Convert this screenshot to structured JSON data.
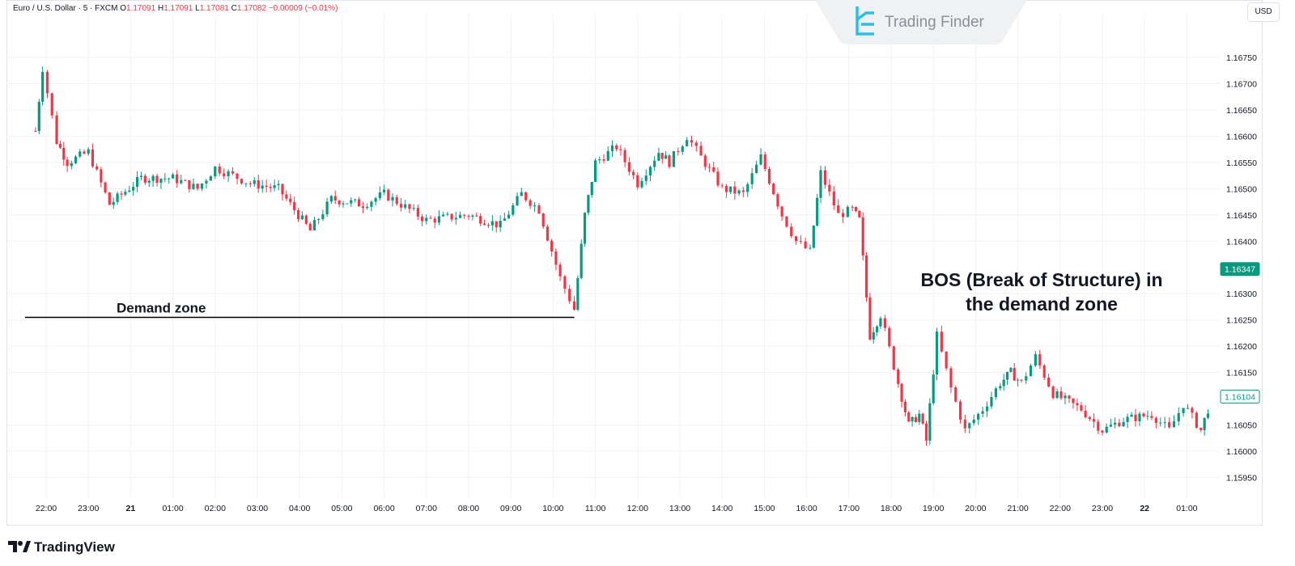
{
  "header": {
    "symbol": "Euro / U.S. Dollar · 5 · FXCM",
    "ohlc": [
      {
        "label": "O",
        "value": "1.17091"
      },
      {
        "label": "H",
        "value": "1.17091"
      },
      {
        "label": "L",
        "value": "1.17081"
      },
      {
        "label": "C",
        "value": "1.17082"
      }
    ],
    "change": "−0.00009 (−0.01%)"
  },
  "watermark": "Trading Finder",
  "currency": "USD",
  "footer_brand": "TradingView",
  "colors": {
    "up": "#089981",
    "down": "#f23645",
    "zone": "#d6efea",
    "grid": "#f0f3fa",
    "axis_text": "#131722",
    "price_tag": "#089981"
  },
  "chart_data": {
    "type": "candlestick",
    "ylim": [
      1.1592,
      1.1679
    ],
    "y_ticks": [
      "1.16750",
      "1.16700",
      "1.16650",
      "1.16600",
      "1.16550",
      "1.16500",
      "1.16450",
      "1.16400",
      "1.16300",
      "1.16250",
      "1.16200",
      "1.16150",
      "1.16050",
      "1.16000",
      "1.15950"
    ],
    "x_ticks": [
      "22:00",
      "23:00",
      "21",
      "01:00",
      "02:00",
      "03:00",
      "04:00",
      "05:00",
      "06:00",
      "07:00",
      "08:00",
      "09:00",
      "10:00",
      "11:00",
      "12:00",
      "13:00",
      "14:00",
      "15:00",
      "16:00",
      "17:00",
      "18:00",
      "19:00",
      "20:00",
      "21:00",
      "22:00",
      "23:00",
      "22",
      "01:00"
    ],
    "price_labels": [
      {
        "value": 1.16347,
        "text": "1.16347",
        "style": "filled"
      },
      {
        "value": 1.16104,
        "text": "1.16104",
        "style": "outlined"
      }
    ],
    "path": [
      {
        "x": "21:45",
        "y": 1.1661
      },
      {
        "x": "21:55",
        "y": 1.1673
      },
      {
        "x": "22:15",
        "y": 1.1659
      },
      {
        "x": "22:30",
        "y": 1.1655
      },
      {
        "x": "23:00",
        "y": 1.1657
      },
      {
        "x": "23:30",
        "y": 1.1647
      },
      {
        "x": "00:15",
        "y": 1.1652
      },
      {
        "x": "01:00",
        "y": 1.1652
      },
      {
        "x": "01:35",
        "y": 1.165
      },
      {
        "x": "02:00",
        "y": 1.1654
      },
      {
        "x": "02:50",
        "y": 1.1651
      },
      {
        "x": "03:30",
        "y": 1.165
      },
      {
        "x": "04:15",
        "y": 1.1642
      },
      {
        "x": "04:45",
        "y": 1.1648
      },
      {
        "x": "05:30",
        "y": 1.1647
      },
      {
        "x": "06:00",
        "y": 1.1649
      },
      {
        "x": "07:00",
        "y": 1.1644
      },
      {
        "x": "08:00",
        "y": 1.1645
      },
      {
        "x": "08:45",
        "y": 1.1643
      },
      {
        "x": "09:15",
        "y": 1.1649
      },
      {
        "x": "09:40",
        "y": 1.1646
      },
      {
        "x": "10:10",
        "y": 1.1633
      },
      {
        "x": "10:30",
        "y": 1.1627
      },
      {
        "x": "10:45",
        "y": 1.1645
      },
      {
        "x": "11:00",
        "y": 1.1655
      },
      {
        "x": "11:30",
        "y": 1.1658
      },
      {
        "x": "12:00",
        "y": 1.1651
      },
      {
        "x": "12:30",
        "y": 1.1657
      },
      {
        "x": "12:45",
        "y": 1.1655
      },
      {
        "x": "13:10",
        "y": 1.166
      },
      {
        "x": "13:30",
        "y": 1.1656
      },
      {
        "x": "14:00",
        "y": 1.165
      },
      {
        "x": "14:30",
        "y": 1.1649
      },
      {
        "x": "14:55",
        "y": 1.1656
      },
      {
        "x": "15:25",
        "y": 1.1645
      },
      {
        "x": "15:45",
        "y": 1.164
      },
      {
        "x": "16:05",
        "y": 1.1638
      },
      {
        "x": "16:20",
        "y": 1.1653
      },
      {
        "x": "16:45",
        "y": 1.1645
      },
      {
        "x": "17:05",
        "y": 1.1646
      },
      {
        "x": "17:15",
        "y": 1.1644
      },
      {
        "x": "17:30",
        "y": 1.1622
      },
      {
        "x": "17:45",
        "y": 1.1626
      },
      {
        "x": "18:10",
        "y": 1.1613
      },
      {
        "x": "18:25",
        "y": 1.1605
      },
      {
        "x": "18:40",
        "y": 1.1607
      },
      {
        "x": "18:50",
        "y": 1.1602
      },
      {
        "x": "19:05",
        "y": 1.1622
      },
      {
        "x": "19:25",
        "y": 1.1612
      },
      {
        "x": "19:45",
        "y": 1.1604
      },
      {
        "x": "20:10",
        "y": 1.1608
      },
      {
        "x": "20:35",
        "y": 1.1613
      },
      {
        "x": "20:50",
        "y": 1.1615
      },
      {
        "x": "21:05",
        "y": 1.1613
      },
      {
        "x": "21:25",
        "y": 1.1618
      },
      {
        "x": "21:50",
        "y": 1.1611
      },
      {
        "x": "22:30",
        "y": 1.1608
      },
      {
        "x": "23:00",
        "y": 1.1604
      },
      {
        "x": "23:30",
        "y": 1.1606
      },
      {
        "x": "00:10",
        "y": 1.1607
      },
      {
        "x": "00:35",
        "y": 1.1604
      },
      {
        "x": "00:55",
        "y": 1.1609
      },
      {
        "x": "01:20",
        "y": 1.1604
      },
      {
        "x": "01:35",
        "y": 1.161
      }
    ],
    "demand_zone": {
      "label": "Demand zone",
      "from": "10:30",
      "to": "17:15",
      "y_low": 1.16255,
      "y_high": 1.16289
    },
    "bos_line": {
      "from": "10:30",
      "to": "21:30",
      "y": 1.16255,
      "label_lines": [
        "BOS (Break of Structure) in",
        "the demand zone"
      ]
    }
  }
}
